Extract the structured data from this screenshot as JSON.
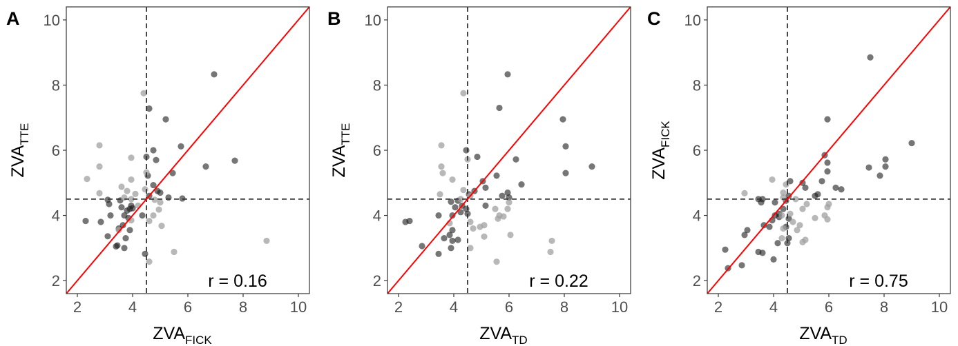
{
  "colors": {
    "background": "#ffffff",
    "border": "#333333",
    "identity_line": "#ff0000",
    "reference_line": "#333333",
    "point_dark": "#1a1a1a",
    "point_light": "#a0a0a0",
    "tick_label": "#4d4d4d"
  },
  "chart_data": [
    {
      "type": "scatter",
      "panel_label": "A",
      "xlabel": "ZVA",
      "xlabel_sub": "FICK",
      "ylabel": "ZVA",
      "ylabel_sub": "TTE",
      "annotation": "r = 0.16",
      "xlim": [
        1.6,
        10.4
      ],
      "ylim": [
        1.6,
        10.4
      ],
      "xticks": [
        2,
        4,
        6,
        8,
        10
      ],
      "yticks": [
        2,
        4,
        6,
        8,
        10
      ],
      "tick_labels": [
        "2",
        "4",
        "6",
        "8",
        "10"
      ],
      "reference_lines": {
        "x": 4.5,
        "y": 4.5,
        "style": "dashed"
      },
      "identity_line": true,
      "grid": false,
      "series": [
        {
          "group": "dark",
          "points": [
            [
              6.95,
              8.33
            ],
            [
              4.6,
              7.28
            ],
            [
              5.2,
              6.95
            ],
            [
              5.75,
              6.12
            ],
            [
              4.75,
              6.0
            ],
            [
              4.5,
              5.8
            ],
            [
              4.85,
              5.7
            ],
            [
              6.65,
              5.5
            ],
            [
              7.7,
              5.68
            ],
            [
              5.45,
              5.3
            ],
            [
              4.55,
              5.22
            ],
            [
              4.75,
              4.93
            ],
            [
              4.9,
              4.75
            ],
            [
              5.0,
              4.7
            ],
            [
              4.6,
              4.6
            ],
            [
              5.3,
              4.55
            ],
            [
              5.8,
              4.52
            ],
            [
              3.1,
              4.48
            ],
            [
              3.55,
              4.46
            ],
            [
              3.15,
              4.35
            ],
            [
              3.95,
              4.3
            ],
            [
              4.0,
              4.22
            ],
            [
              3.6,
              4.25
            ],
            [
              3.8,
              4.15
            ],
            [
              3.9,
              4.2
            ],
            [
              3.7,
              4.0
            ],
            [
              4.35,
              4.0
            ],
            [
              3.2,
              4.0
            ],
            [
              3.85,
              3.92
            ],
            [
              2.3,
              3.83
            ],
            [
              2.85,
              3.8
            ],
            [
              3.65,
              3.7
            ],
            [
              3.9,
              3.55
            ],
            [
              3.5,
              3.6
            ],
            [
              3.1,
              3.36
            ],
            [
              3.75,
              3.3
            ],
            [
              3.45,
              3.08
            ],
            [
              3.4,
              3.05
            ],
            [
              3.7,
              3.0
            ],
            [
              4.45,
              2.82
            ]
          ]
        },
        {
          "group": "light",
          "points": [
            [
              4.4,
              7.75
            ],
            [
              2.8,
              6.15
            ],
            [
              2.8,
              5.5
            ],
            [
              3.95,
              5.77
            ],
            [
              4.5,
              5.32
            ],
            [
              2.35,
              5.12
            ],
            [
              3.95,
              5.1
            ],
            [
              3.6,
              4.88
            ],
            [
              3.8,
              4.75
            ],
            [
              2.8,
              4.68
            ],
            [
              4.45,
              4.8
            ],
            [
              4.1,
              4.66
            ],
            [
              3.7,
              4.55
            ],
            [
              3.95,
              4.5
            ],
            [
              4.2,
              4.3
            ],
            [
              4.8,
              4.48
            ],
            [
              5.0,
              4.4
            ],
            [
              4.95,
              4.18
            ],
            [
              4.75,
              4.0
            ],
            [
              3.95,
              3.85
            ],
            [
              4.6,
              3.83
            ],
            [
              5.05,
              3.68
            ],
            [
              3.5,
              3.55
            ],
            [
              5.5,
              2.88
            ],
            [
              4.6,
              2.58
            ],
            [
              8.85,
              3.22
            ]
          ]
        }
      ]
    },
    {
      "type": "scatter",
      "panel_label": "B",
      "xlabel": "ZVA",
      "xlabel_sub": "TD",
      "ylabel": "ZVA",
      "ylabel_sub": "TTE",
      "annotation": "r = 0.22",
      "xlim": [
        1.6,
        10.4
      ],
      "ylim": [
        1.6,
        10.4
      ],
      "xticks": [
        2,
        4,
        6,
        8,
        10
      ],
      "yticks": [
        2,
        4,
        6,
        8,
        10
      ],
      "tick_labels": [
        "2",
        "4",
        "6",
        "8",
        "10"
      ],
      "reference_lines": {
        "x": 4.5,
        "y": 4.5,
        "style": "dashed"
      },
      "identity_line": true,
      "grid": false,
      "series": [
        {
          "group": "dark",
          "points": [
            [
              5.95,
              8.33
            ],
            [
              5.65,
              7.3
            ],
            [
              7.95,
              6.95
            ],
            [
              8.05,
              6.12
            ],
            [
              4.45,
              6.0
            ],
            [
              4.85,
              5.8
            ],
            [
              6.25,
              5.72
            ],
            [
              5.55,
              5.22
            ],
            [
              8.05,
              5.3
            ],
            [
              9.0,
              5.5
            ],
            [
              5.05,
              5.05
            ],
            [
              6.45,
              4.95
            ],
            [
              5.15,
              4.85
            ],
            [
              4.75,
              4.75
            ],
            [
              5.95,
              4.7
            ],
            [
              4.55,
              4.65
            ],
            [
              5.75,
              4.6
            ],
            [
              6.0,
              4.55
            ],
            [
              4.15,
              4.45
            ],
            [
              3.9,
              4.42
            ],
            [
              4.3,
              4.3
            ],
            [
              4.45,
              4.2
            ],
            [
              4.05,
              4.25
            ],
            [
              5.15,
              4.3
            ],
            [
              4.25,
              4.1
            ],
            [
              3.95,
              4.0
            ],
            [
              4.5,
              4.05
            ],
            [
              3.45,
              4.0
            ],
            [
              2.4,
              3.83
            ],
            [
              2.25,
              3.8
            ],
            [
              3.95,
              3.55
            ],
            [
              3.65,
              3.3
            ],
            [
              3.95,
              3.22
            ],
            [
              4.15,
              3.25
            ],
            [
              2.85,
              3.06
            ],
            [
              3.9,
              3.0
            ],
            [
              3.45,
              2.82
            ],
            [
              3.85,
              3.4
            ]
          ]
        },
        {
          "group": "light",
          "points": [
            [
              4.35,
              7.75
            ],
            [
              3.55,
              6.15
            ],
            [
              3.55,
              5.5
            ],
            [
              3.6,
              5.3
            ],
            [
              4.5,
              5.72
            ],
            [
              3.95,
              5.1
            ],
            [
              3.5,
              4.65
            ],
            [
              4.35,
              4.78
            ],
            [
              4.6,
              4.6
            ],
            [
              4.25,
              4.5
            ],
            [
              6.0,
              4.4
            ],
            [
              5.95,
              4.2
            ],
            [
              5.65,
              4.0
            ],
            [
              5.5,
              4.2
            ],
            [
              5.8,
              3.97
            ],
            [
              5.6,
              3.9
            ],
            [
              4.6,
              3.8
            ],
            [
              3.85,
              3.76
            ],
            [
              5.1,
              3.7
            ],
            [
              4.95,
              3.65
            ],
            [
              4.7,
              3.6
            ],
            [
              5.1,
              3.35
            ],
            [
              6.05,
              3.4
            ],
            [
              7.55,
              3.22
            ],
            [
              7.5,
              2.88
            ],
            [
              5.55,
              2.58
            ],
            [
              4.6,
              3.0
            ]
          ]
        }
      ]
    },
    {
      "type": "scatter",
      "panel_label": "C",
      "xlabel": "ZVA",
      "xlabel_sub": "TD",
      "ylabel": "ZVA",
      "ylabel_sub": "FICK",
      "annotation": "r = 0.75",
      "xlim": [
        1.6,
        10.4
      ],
      "ylim": [
        1.6,
        10.4
      ],
      "xticks": [
        2,
        4,
        6,
        8,
        10
      ],
      "yticks": [
        2,
        4,
        6,
        8,
        10
      ],
      "tick_labels": [
        "2",
        "4",
        "6",
        "8",
        "10"
      ],
      "reference_lines": {
        "x": 4.5,
        "y": 4.5,
        "style": "dashed"
      },
      "identity_line": true,
      "grid": false,
      "series": [
        {
          "group": "dark",
          "points": [
            [
              7.5,
              8.85
            ],
            [
              5.95,
              6.95
            ],
            [
              9.0,
              6.22
            ],
            [
              5.85,
              5.85
            ],
            [
              5.95,
              5.62
            ],
            [
              5.95,
              5.35
            ],
            [
              8.05,
              5.72
            ],
            [
              8.05,
              5.5
            ],
            [
              7.45,
              5.47
            ],
            [
              7.85,
              5.22
            ],
            [
              6.25,
              4.85
            ],
            [
              6.45,
              4.8
            ],
            [
              5.75,
              5.05
            ],
            [
              5.05,
              5.0
            ],
            [
              4.6,
              5.05
            ],
            [
              5.15,
              4.85
            ],
            [
              4.55,
              4.6
            ],
            [
              5.6,
              4.65
            ],
            [
              5.5,
              4.6
            ],
            [
              3.45,
              4.5
            ],
            [
              3.6,
              4.5
            ],
            [
              3.55,
              4.4
            ],
            [
              4.05,
              4.4
            ],
            [
              4.45,
              4.45
            ],
            [
              4.35,
              4.2
            ],
            [
              4.2,
              4.05
            ],
            [
              4.05,
              4.0
            ],
            [
              4.2,
              3.95
            ],
            [
              3.95,
              3.85
            ],
            [
              4.55,
              3.9
            ],
            [
              3.65,
              3.7
            ],
            [
              3.85,
              3.65
            ],
            [
              4.45,
              3.65
            ],
            [
              3.05,
              3.55
            ],
            [
              4.55,
              3.3
            ],
            [
              4.15,
              3.15
            ],
            [
              2.95,
              3.4
            ],
            [
              2.25,
              2.95
            ],
            [
              4.5,
              3.15
            ],
            [
              3.45,
              2.88
            ],
            [
              3.6,
              2.85
            ],
            [
              4.0,
              2.65
            ],
            [
              2.85,
              2.47
            ],
            [
              2.35,
              2.38
            ]
          ]
        },
        {
          "group": "light",
          "points": [
            [
              3.95,
              5.1
            ],
            [
              4.45,
              4.95
            ],
            [
              2.95,
              4.68
            ],
            [
              4.35,
              4.7
            ],
            [
              4.35,
              4.55
            ],
            [
              4.8,
              4.5
            ],
            [
              6.0,
              4.35
            ],
            [
              5.2,
              4.35
            ],
            [
              5.95,
              4.25
            ],
            [
              5.05,
              4.2
            ],
            [
              4.6,
              4.05
            ],
            [
              4.3,
              4.0
            ],
            [
              5.85,
              4.0
            ],
            [
              5.95,
              3.88
            ],
            [
              5.5,
              3.92
            ],
            [
              4.7,
              3.8
            ],
            [
              4.95,
              3.7
            ],
            [
              4.35,
              3.6
            ],
            [
              4.85,
              3.55
            ],
            [
              5.15,
              3.25
            ],
            [
              5.05,
              3.18
            ],
            [
              4.3,
              3.3
            ]
          ]
        }
      ]
    }
  ]
}
